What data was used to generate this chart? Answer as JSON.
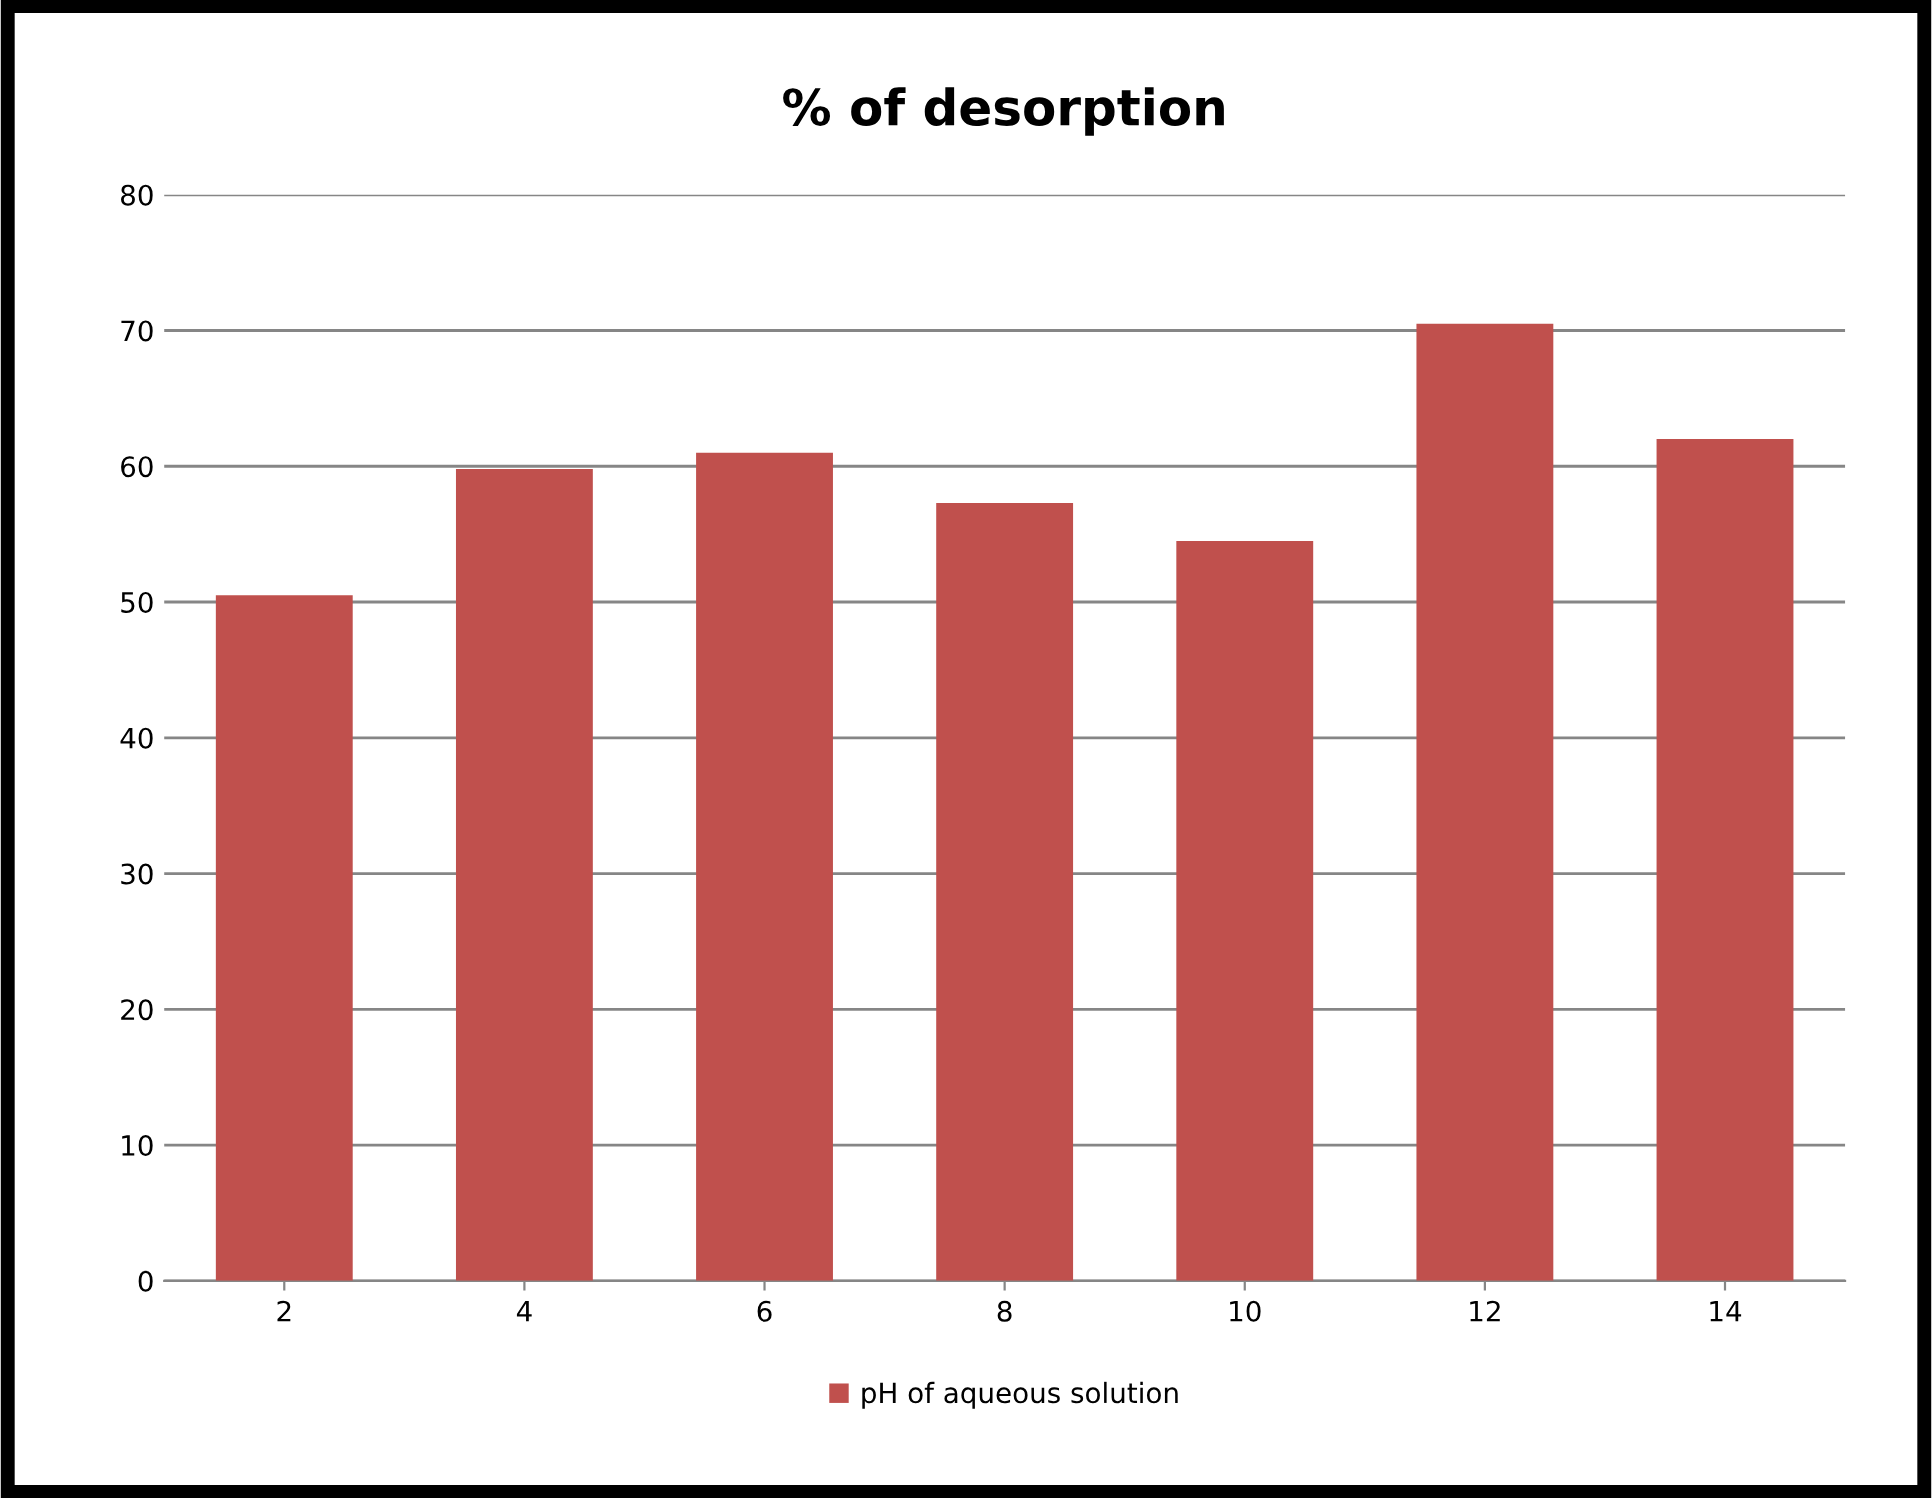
{
  "chart_data": {
    "type": "bar",
    "title": "% of desorption",
    "categories": [
      "2",
      "4",
      "6",
      "8",
      "10",
      "12",
      "14"
    ],
    "series": [
      {
        "name": "pH of aqueous solution",
        "color": "#c0504d",
        "values": [
          50.5,
          59.8,
          61.0,
          57.3,
          54.5,
          70.5,
          62.0
        ]
      }
    ],
    "ylim": [
      0,
      80
    ],
    "yticks": [
      0,
      10,
      20,
      30,
      40,
      50,
      60,
      70,
      80
    ],
    "grid": "y",
    "legend": "bottom"
  }
}
